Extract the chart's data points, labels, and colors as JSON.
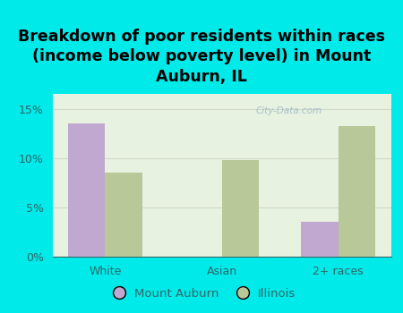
{
  "categories": [
    "White",
    "Asian",
    "2+ races"
  ],
  "mount_auburn": [
    13.5,
    0.0,
    3.5
  ],
  "illinois": [
    8.5,
    9.8,
    13.2
  ],
  "bar_color_ma": "#c0a8d0",
  "bar_color_il": "#b8c898",
  "background_color": "#00eaea",
  "plot_bg_top": "#e8f2e0",
  "plot_bg_bottom": "#f5faf0",
  "title": "Breakdown of poor residents within races\n(income below poverty level) in Mount\nAuburn, IL",
  "title_fontsize": 12.5,
  "title_fontweight": "bold",
  "ylabel_ticks": [
    "0%",
    "5%",
    "10%",
    "15%"
  ],
  "ytick_vals": [
    0,
    5,
    10,
    15
  ],
  "ylim": [
    0,
    16.5
  ],
  "legend_labels": [
    "Mount Auburn",
    "Illinois"
  ],
  "watermark": "City-Data.com",
  "bar_width": 0.32,
  "grid_color": "#d0d8c8",
  "tick_color": "#336666",
  "title_color": "#000000"
}
